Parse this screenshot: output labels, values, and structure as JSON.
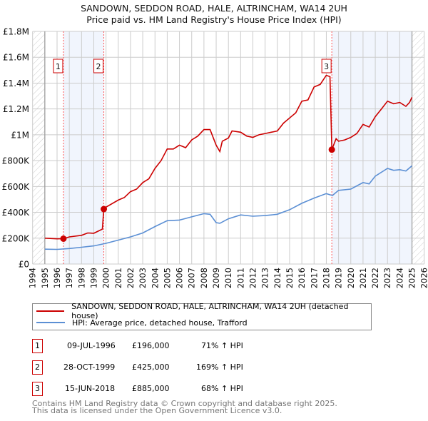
{
  "header": {
    "title": "SANDOWN, SEDDON ROAD, HALE, ALTRINCHAM, WA14 2UH",
    "subtitle": "Price paid vs. HM Land Registry's House Price Index (HPI)"
  },
  "chart_data": {
    "type": "line",
    "title": "SANDOWN, SEDDON ROAD, HALE, ALTRINCHAM, WA14 2UH",
    "subtitle": "Price paid vs. HM Land Registry's House Price Index (HPI)",
    "xlim": [
      1994,
      2026
    ],
    "ylim": [
      0,
      1800000
    ],
    "x_ticks": [
      "1994",
      "1995",
      "1996",
      "1997",
      "1998",
      "1999",
      "2000",
      "2001",
      "2002",
      "2003",
      "2004",
      "2005",
      "2006",
      "2007",
      "2008",
      "2009",
      "2010",
      "2011",
      "2012",
      "2013",
      "2014",
      "2015",
      "2016",
      "2017",
      "2018",
      "2019",
      "2020",
      "2021",
      "2022",
      "2023",
      "2024",
      "2025",
      "2026"
    ],
    "y_ticks": [
      {
        "v": 0,
        "label": "£0"
      },
      {
        "v": 200000,
        "label": "£200K"
      },
      {
        "v": 400000,
        "label": "£400K"
      },
      {
        "v": 600000,
        "label": "£600K"
      },
      {
        "v": 800000,
        "label": "£800K"
      },
      {
        "v": 1000000,
        "label": "£1M"
      },
      {
        "v": 1200000,
        "label": "£1.2M"
      },
      {
        "v": 1400000,
        "label": "£1.4M"
      },
      {
        "v": 1600000,
        "label": "£1.6M"
      },
      {
        "v": 1800000,
        "label": "£1.8M"
      }
    ],
    "grid": true,
    "shaded_ranges": [
      [
        1996.52,
        1999.82
      ],
      [
        2018.45,
        2025
      ]
    ],
    "hatched_ranges": [
      [
        1994,
        1995
      ],
      [
        2025,
        2026
      ]
    ],
    "series": [
      {
        "name": "SANDOWN, SEDDON ROAD, HALE, ALTRINCHAM, WA14 2UH (detached house)",
        "color": "#cc0000",
        "x": [
          1995,
          1996,
          1996.52,
          1997,
          1998,
          1998.5,
          1999,
          1999.7,
          1999.82,
          2000,
          2001,
          2001.5,
          2002,
          2002.5,
          2003,
          2003.5,
          2004,
          2004.5,
          2005,
          2005.5,
          2006,
          2006.5,
          2007,
          2007.5,
          2008,
          2008.5,
          2009,
          2009.3,
          2009.5,
          2010,
          2010.3,
          2011,
          2011.5,
          2012,
          2012.5,
          2013,
          2013.5,
          2014,
          2014.5,
          2015,
          2015.5,
          2016,
          2016.5,
          2017,
          2017.5,
          2018,
          2018.3,
          2018.45,
          2018.8,
          2019,
          2019.5,
          2020,
          2020.5,
          2021,
          2021.5,
          2022,
          2022.5,
          2023,
          2023.5,
          2024,
          2024.5,
          2024.8,
          2025
        ],
        "y": [
          200000,
          195000,
          196000,
          210000,
          222000,
          240000,
          238000,
          270000,
          425000,
          440000,
          495000,
          515000,
          560000,
          580000,
          630000,
          660000,
          740000,
          800000,
          890000,
          890000,
          920000,
          900000,
          960000,
          990000,
          1040000,
          1040000,
          920000,
          870000,
          950000,
          975000,
          1030000,
          1020000,
          990000,
          980000,
          1000000,
          1010000,
          1020000,
          1030000,
          1090000,
          1130000,
          1170000,
          1260000,
          1270000,
          1370000,
          1390000,
          1460000,
          1450000,
          885000,
          970000,
          950000,
          960000,
          980000,
          1010000,
          1080000,
          1060000,
          1140000,
          1200000,
          1260000,
          1240000,
          1250000,
          1220000,
          1250000,
          1290000
        ]
      },
      {
        "name": "HPI: Average price, detached house, Trafford",
        "color": "#5b8fd4",
        "x": [
          1995,
          1996,
          1997,
          1998,
          1999,
          2000,
          2001,
          2002,
          2003,
          2004,
          2005,
          2006,
          2007,
          2008,
          2008.5,
          2009,
          2009.3,
          2010,
          2011,
          2012,
          2013,
          2014,
          2015,
          2016,
          2017,
          2018,
          2018.5,
          2019,
          2020,
          2021,
          2021.5,
          2022,
          2023,
          2023.5,
          2024,
          2024.5,
          2025
        ],
        "y": [
          115000,
          113000,
          120000,
          130000,
          140000,
          160000,
          185000,
          210000,
          240000,
          290000,
          335000,
          340000,
          365000,
          390000,
          385000,
          320000,
          315000,
          350000,
          380000,
          370000,
          375000,
          385000,
          420000,
          470000,
          510000,
          545000,
          530000,
          570000,
          580000,
          630000,
          620000,
          680000,
          740000,
          725000,
          730000,
          720000,
          760000
        ]
      }
    ],
    "annotations": [
      {
        "label": "1",
        "x": 1996.52,
        "y": 196000
      },
      {
        "label": "2",
        "x": 1999.82,
        "y": 425000
      },
      {
        "label": "3",
        "x": 2018.45,
        "y": 885000
      }
    ]
  },
  "legend": {
    "items": [
      {
        "label": "SANDOWN, SEDDON ROAD, HALE, ALTRINCHAM, WA14 2UH (detached house)",
        "color": "#cc0000"
      },
      {
        "label": "HPI: Average price, detached house, Trafford",
        "color": "#5b8fd4"
      }
    ]
  },
  "transactions": [
    {
      "num": "1",
      "date": "09-JUL-1996",
      "price": "£196,000",
      "hpi": "71% ↑ HPI"
    },
    {
      "num": "2",
      "date": "28-OCT-1999",
      "price": "£425,000",
      "hpi": "169% ↑ HPI"
    },
    {
      "num": "3",
      "date": "15-JUN-2018",
      "price": "£885,000",
      "hpi": "68% ↑ HPI"
    }
  ],
  "footer": {
    "line1": "Contains HM Land Registry data © Crown copyright and database right 2025.",
    "line2": "This data is licensed under the Open Government Licence v3.0."
  }
}
